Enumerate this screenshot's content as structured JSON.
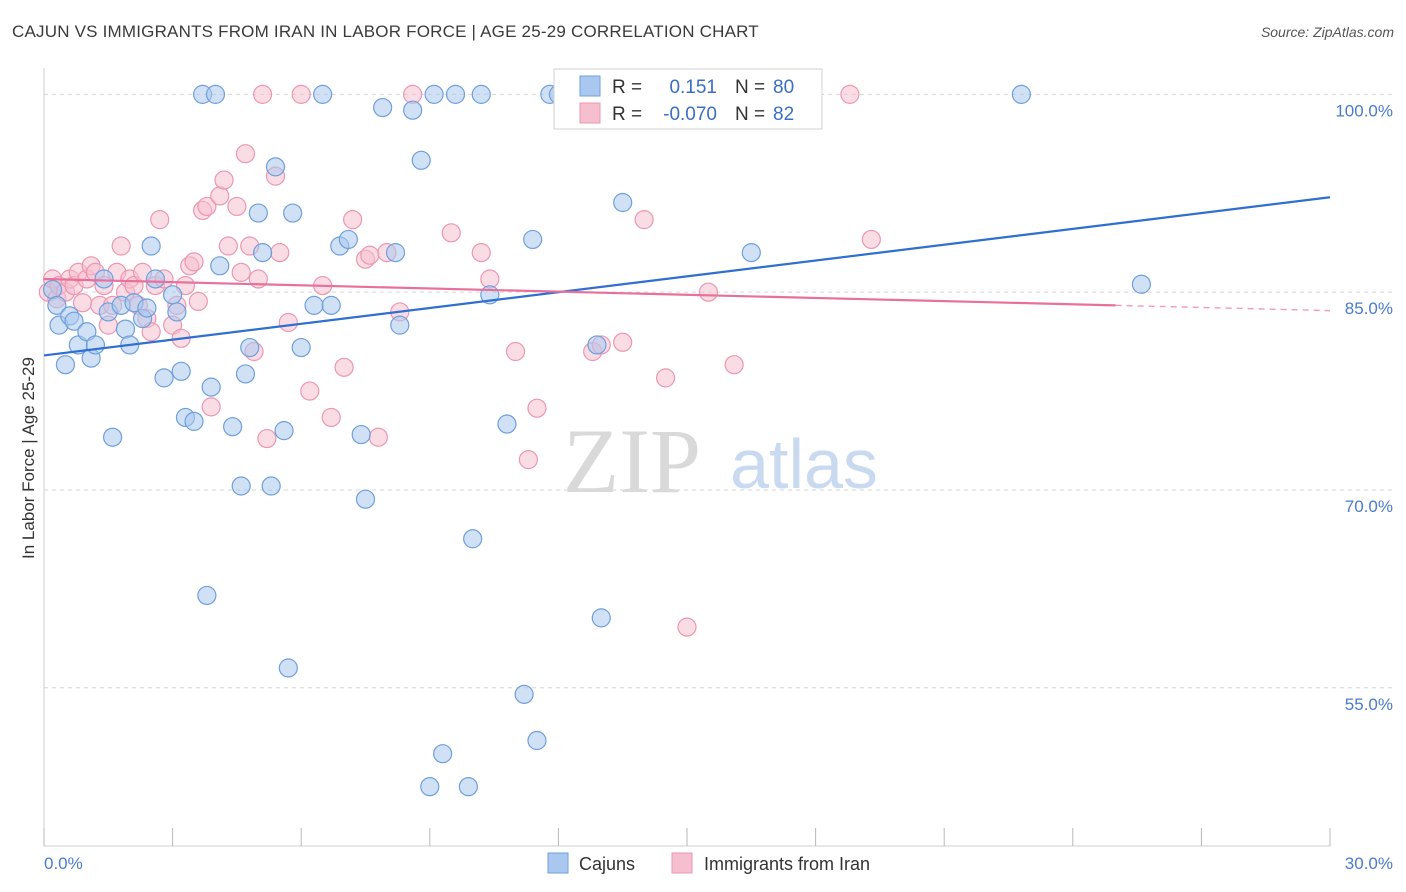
{
  "title": "CAJUN VS IMMIGRANTS FROM IRAN IN LABOR FORCE | AGE 25-29 CORRELATION CHART",
  "source": "Source: ZipAtlas.com",
  "watermark": {
    "zip": "ZIP",
    "atlas": "atlas"
  },
  "colors": {
    "cajun_fill": "#aac8ef",
    "cajun_stroke": "#6f9fdc",
    "cajun_line": "#2f6fd1",
    "iran_fill": "#f6bfd0",
    "iran_stroke": "#ec97b2",
    "iran_line": "#e8709a",
    "tick_text": "#4a7cc9",
    "grid": "#d6d6d6"
  },
  "legend": {
    "r_label": "R =",
    "n_label": "N =",
    "cajun": {
      "r": "0.151",
      "n": "80"
    },
    "iran": {
      "r": "-0.070",
      "n": "82"
    }
  },
  "bottom_legend": {
    "cajun": "Cajuns",
    "iran": "Immigrants from Iran"
  },
  "chart_data": {
    "type": "scatter",
    "title": "CAJUN VS IMMIGRANTS FROM IRAN IN LABOR FORCE | AGE 25-29 CORRELATION CHART",
    "xlabel": "",
    "ylabel": "In Labor Force | Age 25-29",
    "xlim": [
      0,
      30
    ],
    "ylim": [
      43,
      102
    ],
    "x_tick_labels": [
      "0.0%",
      "30.0%"
    ],
    "y_ticks": [
      55,
      70,
      85,
      100
    ],
    "y_tick_labels": [
      "55.0%",
      "70.0%",
      "85.0%",
      "100.0%"
    ],
    "grid": true,
    "legend_position": "top-center",
    "series": [
      {
        "name": "Cajuns",
        "r": 0.151,
        "n": 80,
        "trend": {
          "x": [
            0,
            30
          ],
          "y": [
            80.2,
            92.2
          ]
        },
        "points": [
          [
            0.2,
            85.2
          ],
          [
            0.3,
            84.0
          ],
          [
            0.35,
            82.5
          ],
          [
            0.5,
            79.5
          ],
          [
            0.6,
            83.2
          ],
          [
            0.7,
            82.8
          ],
          [
            0.8,
            81.0
          ],
          [
            1.0,
            82.0
          ],
          [
            1.1,
            80.0
          ],
          [
            1.2,
            81.0
          ],
          [
            1.4,
            86.0
          ],
          [
            1.5,
            83.5
          ],
          [
            1.6,
            74.0
          ],
          [
            1.8,
            84.0
          ],
          [
            1.9,
            82.2
          ],
          [
            2.0,
            81.0
          ],
          [
            2.1,
            84.2
          ],
          [
            2.3,
            83.0
          ],
          [
            2.4,
            83.8
          ],
          [
            2.5,
            88.5
          ],
          [
            2.6,
            86.0
          ],
          [
            2.8,
            78.5
          ],
          [
            3.0,
            84.8
          ],
          [
            3.1,
            83.5
          ],
          [
            3.2,
            79.0
          ],
          [
            3.3,
            75.5
          ],
          [
            3.5,
            75.2
          ],
          [
            3.7,
            100.0
          ],
          [
            3.8,
            62.0
          ],
          [
            3.9,
            77.8
          ],
          [
            4.0,
            100.0
          ],
          [
            4.1,
            87.0
          ],
          [
            4.4,
            74.8
          ],
          [
            4.6,
            70.3
          ],
          [
            4.7,
            78.8
          ],
          [
            4.8,
            80.8
          ],
          [
            5.0,
            91.0
          ],
          [
            5.1,
            88.0
          ],
          [
            5.3,
            70.3
          ],
          [
            5.4,
            94.5
          ],
          [
            5.6,
            74.5
          ],
          [
            5.7,
            56.5
          ],
          [
            5.8,
            91.0
          ],
          [
            6.0,
            80.8
          ],
          [
            6.3,
            84.0
          ],
          [
            6.5,
            100.0
          ],
          [
            6.7,
            84.0
          ],
          [
            6.9,
            88.5
          ],
          [
            7.1,
            89.0
          ],
          [
            7.4,
            74.2
          ],
          [
            7.5,
            69.3
          ],
          [
            7.9,
            99.0
          ],
          [
            8.2,
            88.0
          ],
          [
            8.3,
            82.5
          ],
          [
            8.6,
            98.8
          ],
          [
            8.8,
            95.0
          ],
          [
            9.0,
            47.5
          ],
          [
            9.1,
            100.0
          ],
          [
            9.3,
            50.0
          ],
          [
            9.6,
            100.0
          ],
          [
            9.9,
            47.5
          ],
          [
            10.0,
            66.3
          ],
          [
            10.2,
            100.0
          ],
          [
            10.4,
            84.8
          ],
          [
            10.8,
            75.0
          ],
          [
            11.2,
            54.5
          ],
          [
            11.4,
            89.0
          ],
          [
            11.5,
            51.0
          ],
          [
            11.8,
            100.0
          ],
          [
            12.0,
            100.0
          ],
          [
            12.8,
            100.0
          ],
          [
            12.9,
            81.0
          ],
          [
            13.0,
            60.3
          ],
          [
            13.5,
            91.8
          ],
          [
            14.0,
            100.0
          ],
          [
            14.1,
            100.0
          ],
          [
            15.2,
            100.0
          ],
          [
            16.5,
            88.0
          ],
          [
            22.8,
            100.0
          ],
          [
            25.6,
            85.6
          ]
        ]
      },
      {
        "name": "Immigrants from Iran",
        "r": -0.07,
        "n": 82,
        "trend": {
          "x": [
            0,
            25
          ],
          "y": [
            86.0,
            84.0
          ]
        },
        "trend_dashed": {
          "x": [
            25,
            30
          ],
          "y": [
            84.0,
            83.6
          ]
        },
        "points": [
          [
            0.1,
            85.0
          ],
          [
            0.2,
            86.0
          ],
          [
            0.3,
            84.5
          ],
          [
            0.35,
            85.5
          ],
          [
            0.5,
            85.0
          ],
          [
            0.6,
            86.0
          ],
          [
            0.7,
            85.5
          ],
          [
            0.8,
            86.5
          ],
          [
            0.9,
            84.2
          ],
          [
            1.0,
            86.0
          ],
          [
            1.1,
            87.0
          ],
          [
            1.2,
            86.5
          ],
          [
            1.3,
            84.0
          ],
          [
            1.4,
            85.5
          ],
          [
            1.5,
            82.5
          ],
          [
            1.6,
            84.0
          ],
          [
            1.7,
            86.5
          ],
          [
            1.8,
            88.5
          ],
          [
            1.9,
            85.0
          ],
          [
            2.0,
            86.0
          ],
          [
            2.1,
            85.5
          ],
          [
            2.2,
            84.0
          ],
          [
            2.3,
            86.5
          ],
          [
            2.4,
            83.0
          ],
          [
            2.5,
            82.0
          ],
          [
            2.6,
            85.5
          ],
          [
            2.7,
            90.5
          ],
          [
            2.8,
            86.0
          ],
          [
            3.0,
            82.5
          ],
          [
            3.1,
            84.0
          ],
          [
            3.2,
            81.5
          ],
          [
            3.3,
            85.5
          ],
          [
            3.4,
            87.0
          ],
          [
            3.5,
            87.3
          ],
          [
            3.6,
            84.3
          ],
          [
            3.7,
            91.2
          ],
          [
            3.8,
            91.5
          ],
          [
            3.9,
            76.3
          ],
          [
            4.1,
            92.3
          ],
          [
            4.2,
            93.5
          ],
          [
            4.3,
            88.5
          ],
          [
            4.5,
            91.5
          ],
          [
            4.6,
            86.5
          ],
          [
            4.7,
            95.5
          ],
          [
            4.8,
            88.5
          ],
          [
            4.9,
            80.5
          ],
          [
            5.0,
            86.0
          ],
          [
            5.1,
            100.0
          ],
          [
            5.2,
            73.9
          ],
          [
            5.4,
            93.8
          ],
          [
            5.5,
            88.0
          ],
          [
            5.7,
            82.7
          ],
          [
            6.0,
            100.0
          ],
          [
            6.2,
            77.5
          ],
          [
            6.5,
            85.5
          ],
          [
            6.7,
            75.5
          ],
          [
            7.0,
            79.3
          ],
          [
            7.2,
            90.5
          ],
          [
            7.5,
            87.5
          ],
          [
            7.6,
            87.8
          ],
          [
            7.8,
            74.0
          ],
          [
            8.0,
            88.0
          ],
          [
            8.3,
            83.5
          ],
          [
            8.6,
            100.0
          ],
          [
            9.5,
            89.5
          ],
          [
            10.2,
            88.0
          ],
          [
            10.4,
            86.0
          ],
          [
            11.0,
            80.5
          ],
          [
            11.3,
            72.3
          ],
          [
            11.5,
            76.2
          ],
          [
            12.3,
            100.0
          ],
          [
            12.8,
            80.5
          ],
          [
            13.0,
            81.0
          ],
          [
            13.5,
            81.2
          ],
          [
            14.0,
            90.5
          ],
          [
            14.5,
            78.5
          ],
          [
            15.0,
            59.6
          ],
          [
            15.5,
            85.0
          ],
          [
            15.8,
            100.0
          ],
          [
            16.1,
            79.5
          ],
          [
            18.8,
            100.0
          ],
          [
            19.3,
            89.0
          ]
        ]
      }
    ]
  }
}
